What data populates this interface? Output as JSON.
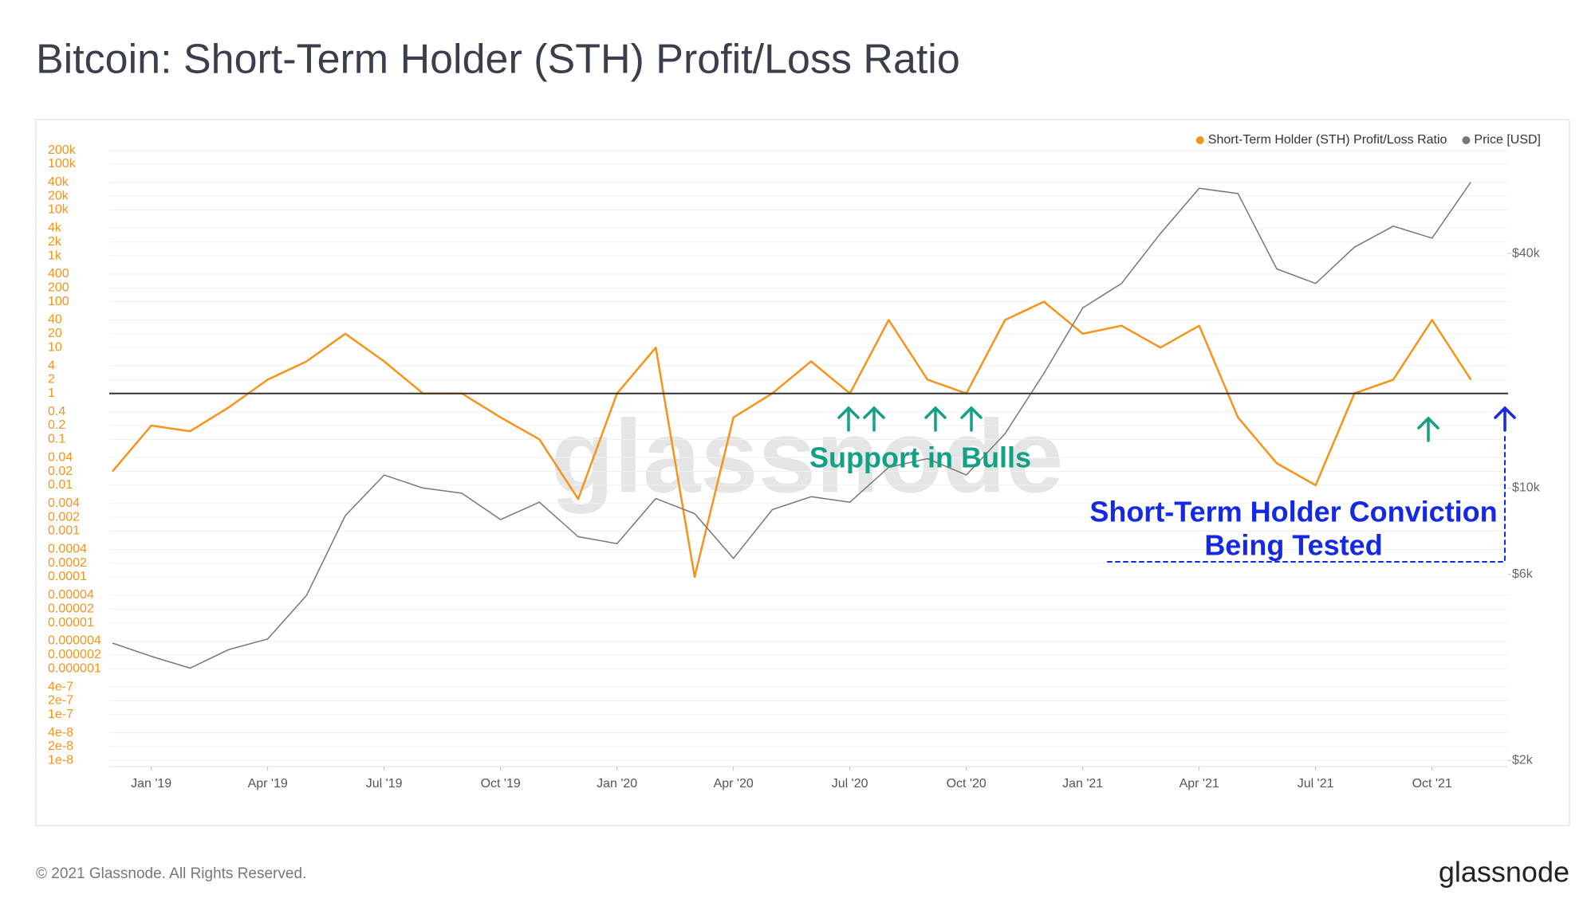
{
  "title": "Bitcoin: Short-Term Holder (STH) Profit/Loss Ratio",
  "footer": "© 2021 Glassnode. All Rights Reserved.",
  "logo": "glassnode",
  "chart_data": {
    "type": "line",
    "watermark": "glassnode",
    "log_scale": true,
    "grid": true,
    "legend": "top-right",
    "hline": 1,
    "hline_color": "#333333",
    "annotations": [
      "Support in Bulls",
      "Short-Term Holder Conviction",
      "Being Tested"
    ],
    "x": [
      "2018-12",
      "2019-01",
      "2019-02",
      "2019-03",
      "2019-04",
      "2019-05",
      "2019-06",
      "2019-07",
      "2019-08",
      "2019-09",
      "2019-10",
      "2019-11",
      "2019-12",
      "2020-01",
      "2020-02",
      "2020-03",
      "2020-04",
      "2020-05",
      "2020-06",
      "2020-07",
      "2020-08",
      "2020-09",
      "2020-10",
      "2020-11",
      "2020-12",
      "2021-01",
      "2021-02",
      "2021-03",
      "2021-04",
      "2021-05",
      "2021-06",
      "2021-07",
      "2021-08",
      "2021-09",
      "2021-10",
      "2021-11"
    ],
    "xlim": [
      "2018-12",
      "2021-12"
    ],
    "xticks": [
      {
        "value": "2019-01",
        "label": "Jan '19"
      },
      {
        "value": "2019-04",
        "label": "Apr '19"
      },
      {
        "value": "2019-07",
        "label": "Jul '19"
      },
      {
        "value": "2019-10",
        "label": "Oct '19"
      },
      {
        "value": "2020-01",
        "label": "Jan '20"
      },
      {
        "value": "2020-04",
        "label": "Apr '20"
      },
      {
        "value": "2020-07",
        "label": "Jul '20"
      },
      {
        "value": "2020-10",
        "label": "Oct '20"
      },
      {
        "value": "2021-01",
        "label": "Jan '21"
      },
      {
        "value": "2021-04",
        "label": "Apr '21"
      },
      {
        "value": "2021-07",
        "label": "Jul '21"
      },
      {
        "value": "2021-10",
        "label": "Oct '21"
      }
    ],
    "ylim": [
      7.35e-09,
      221600
    ],
    "yticks": [
      1e-08,
      2e-08,
      4e-08,
      1e-07,
      2e-07,
      4e-07,
      1e-06,
      2e-06,
      4e-06,
      1e-05,
      2e-05,
      4e-05,
      0.0001,
      0.0002,
      0.0004,
      0.001,
      0.002,
      0.004,
      0.01,
      0.02,
      0.04,
      0.1,
      0.2,
      0.4,
      1,
      2,
      4,
      10,
      20,
      40,
      100,
      200,
      400,
      {
        "value": 1000,
        "label": "1k"
      },
      {
        "value": 2000,
        "label": "2k"
      },
      {
        "value": 4000,
        "label": "4k"
      },
      {
        "value": 10000,
        "label": "10k"
      },
      {
        "value": 20000,
        "label": "20k"
      },
      {
        "value": 40000,
        "label": "40k"
      },
      {
        "value": 100000,
        "label": "100k"
      },
      {
        "value": 200000,
        "label": "200k"
      }
    ],
    "y2lim": [
      1928,
      74500
    ],
    "y2ticks": [
      {
        "value": 2000,
        "label": "$2k"
      },
      {
        "value": 6000,
        "label": "$6k"
      },
      {
        "value": 10000,
        "label": "$10k"
      },
      {
        "value": 40000,
        "label": "$40k"
      }
    ],
    "series": [
      {
        "name": "Short-Term Holder (STH) Profit/Loss Ratio",
        "color": "#f7931a",
        "axis": "y",
        "values": [
          0.02,
          0.2,
          0.15,
          0.5,
          2,
          5,
          20,
          5,
          1,
          1,
          0.3,
          0.1,
          0.005,
          1,
          10,
          0.0001,
          0.3,
          1,
          5,
          1,
          40,
          2,
          1,
          40,
          100,
          20,
          30,
          10,
          30,
          0.3,
          0.03,
          0.01,
          1,
          2,
          40,
          2
        ]
      },
      {
        "name": "Price [USD]",
        "color": "#777777",
        "axis": "y2",
        "values": [
          4000,
          3700,
          3450,
          3850,
          4100,
          5300,
          8500,
          10800,
          10000,
          9700,
          8300,
          9200,
          7500,
          7200,
          9400,
          8600,
          6600,
          8800,
          9500,
          9200,
          11300,
          11900,
          10800,
          13800,
          19700,
          29000,
          33500,
          45000,
          58800,
          57000,
          36500,
          33500,
          41500,
          47000,
          43800,
          61000
        ]
      }
    ]
  }
}
